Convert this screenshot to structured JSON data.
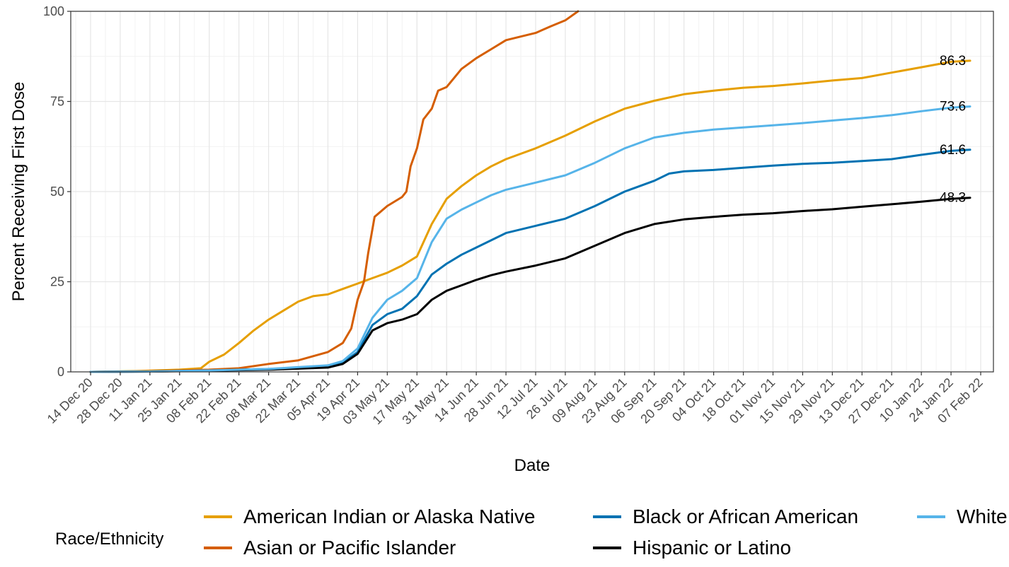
{
  "chart_data": {
    "type": "line",
    "title": "",
    "xlabel": "Date",
    "ylabel": "Percent Receiving First Dose",
    "ylim": [
      0,
      100
    ],
    "y_ticks": [
      0,
      25,
      50,
      75,
      100
    ],
    "xlim": [
      "2020-12-14",
      "2022-02-07"
    ],
    "x_tick_labels": [
      "14 Dec 20",
      "28 Dec 20",
      "11 Jan 21",
      "25 Jan 21",
      "08 Feb 21",
      "22 Feb 21",
      "08 Mar 21",
      "22 Mar 21",
      "05 Apr 21",
      "19 Apr 21",
      "03 May 21",
      "17 May 21",
      "31 May 21",
      "14 Jun 21",
      "28 Jun 21",
      "12 Jul 21",
      "26 Jul 21",
      "09 Aug 21",
      "23 Aug 21",
      "06 Sep 21",
      "20 Sep 21",
      "04 Oct 21",
      "18 Oct 21",
      "01 Nov 21",
      "15 Nov 21",
      "29 Nov 21",
      "13 Dec 21",
      "27 Dec 21",
      "10 Jan 22",
      "24 Jan 22",
      "07 Feb 22"
    ],
    "x_tick_dates": [
      "2020-12-14",
      "2020-12-28",
      "2021-01-11",
      "2021-01-25",
      "2021-02-08",
      "2021-02-22",
      "2021-03-08",
      "2021-03-22",
      "2021-04-05",
      "2021-04-19",
      "2021-05-03",
      "2021-05-17",
      "2021-05-31",
      "2021-06-14",
      "2021-06-28",
      "2021-07-12",
      "2021-07-26",
      "2021-08-09",
      "2021-08-23",
      "2021-09-06",
      "2021-09-20",
      "2021-10-04",
      "2021-10-18",
      "2021-11-01",
      "2021-11-15",
      "2021-11-29",
      "2021-12-13",
      "2021-12-27",
      "2022-01-10",
      "2022-01-24",
      "2022-02-07"
    ],
    "grid": true,
    "legend": {
      "title": "Race/Ethnicity",
      "position": "bottom",
      "entries": [
        {
          "name": "American Indian or Alaska Native",
          "color": "#E69F00"
        },
        {
          "name": "Asian or Pacific Islander",
          "color": "#D55E00"
        },
        {
          "name": "Black or African American",
          "color": "#0072B2"
        },
        {
          "name": "Hispanic or Latino",
          "color": "#000000"
        },
        {
          "name": "White",
          "color": "#56B4E9"
        }
      ]
    },
    "series": [
      {
        "name": "American Indian or Alaska Native",
        "color": "#E69F00",
        "end_label": "86.3",
        "points": [
          [
            "2020-12-14",
            0
          ],
          [
            "2021-01-04",
            0.2
          ],
          [
            "2021-01-25",
            0.6
          ],
          [
            "2021-02-04",
            1.0
          ],
          [
            "2021-02-08",
            2.8
          ],
          [
            "2021-02-15",
            4.8
          ],
          [
            "2021-02-22",
            8
          ],
          [
            "2021-03-01",
            11.5
          ],
          [
            "2021-03-08",
            14.5
          ],
          [
            "2021-03-15",
            17
          ],
          [
            "2021-03-22",
            19.5
          ],
          [
            "2021-03-29",
            21
          ],
          [
            "2021-04-05",
            21.5
          ],
          [
            "2021-04-12",
            23
          ],
          [
            "2021-04-19",
            24.5
          ],
          [
            "2021-04-26",
            26
          ],
          [
            "2021-05-03",
            27.5
          ],
          [
            "2021-05-10",
            29.5
          ],
          [
            "2021-05-17",
            32
          ],
          [
            "2021-05-24",
            41
          ],
          [
            "2021-05-31",
            48
          ],
          [
            "2021-06-07",
            51.5
          ],
          [
            "2021-06-14",
            54.5
          ],
          [
            "2021-06-21",
            57
          ],
          [
            "2021-06-28",
            59
          ],
          [
            "2021-07-12",
            62
          ],
          [
            "2021-07-26",
            65.5
          ],
          [
            "2021-08-09",
            69.5
          ],
          [
            "2021-08-23",
            73
          ],
          [
            "2021-09-06",
            75.2
          ],
          [
            "2021-09-20",
            77
          ],
          [
            "2021-10-04",
            78
          ],
          [
            "2021-10-18",
            78.8
          ],
          [
            "2021-11-01",
            79.3
          ],
          [
            "2021-11-15",
            80
          ],
          [
            "2021-11-29",
            80.8
          ],
          [
            "2021-12-13",
            81.5
          ],
          [
            "2021-12-27",
            83
          ],
          [
            "2022-01-10",
            84.5
          ],
          [
            "2022-01-24",
            86
          ],
          [
            "2022-02-02",
            86.3
          ]
        ]
      },
      {
        "name": "Asian or Pacific Islander",
        "color": "#D55E00",
        "points": [
          [
            "2020-12-14",
            0
          ],
          [
            "2021-01-11",
            0.2
          ],
          [
            "2021-02-08",
            0.6
          ],
          [
            "2021-02-22",
            1.0
          ],
          [
            "2021-03-08",
            2.2
          ],
          [
            "2021-03-22",
            3.2
          ],
          [
            "2021-04-05",
            5.5
          ],
          [
            "2021-04-12",
            8
          ],
          [
            "2021-04-16",
            12
          ],
          [
            "2021-04-19",
            20
          ],
          [
            "2021-04-22",
            25
          ],
          [
            "2021-04-24",
            33
          ],
          [
            "2021-04-27",
            43
          ],
          [
            "2021-05-03",
            46
          ],
          [
            "2021-05-10",
            48.5
          ],
          [
            "2021-05-12",
            50
          ],
          [
            "2021-05-14",
            57
          ],
          [
            "2021-05-17",
            62
          ],
          [
            "2021-05-20",
            70
          ],
          [
            "2021-05-24",
            73
          ],
          [
            "2021-05-27",
            78
          ],
          [
            "2021-05-31",
            79
          ],
          [
            "2021-06-07",
            84
          ],
          [
            "2021-06-14",
            87
          ],
          [
            "2021-06-21",
            89.5
          ],
          [
            "2021-06-28",
            92
          ],
          [
            "2021-07-05",
            93
          ],
          [
            "2021-07-12",
            94
          ],
          [
            "2021-07-19",
            95.8
          ],
          [
            "2021-07-26",
            97.5
          ],
          [
            "2021-08-01",
            100
          ]
        ]
      },
      {
        "name": "Black or African American",
        "color": "#0072B2",
        "end_label": "61.6",
        "points": [
          [
            "2020-12-14",
            0
          ],
          [
            "2021-01-11",
            0.1
          ],
          [
            "2021-02-08",
            0.4
          ],
          [
            "2021-03-08",
            0.8
          ],
          [
            "2021-04-05",
            1.5
          ],
          [
            "2021-04-12",
            2.5
          ],
          [
            "2021-04-19",
            5.5
          ],
          [
            "2021-04-26",
            13
          ],
          [
            "2021-05-03",
            16
          ],
          [
            "2021-05-10",
            17.5
          ],
          [
            "2021-05-17",
            21
          ],
          [
            "2021-05-24",
            27
          ],
          [
            "2021-05-31",
            30
          ],
          [
            "2021-06-07",
            32.5
          ],
          [
            "2021-06-14",
            34.5
          ],
          [
            "2021-06-21",
            36.5
          ],
          [
            "2021-06-28",
            38.5
          ],
          [
            "2021-07-12",
            40.5
          ],
          [
            "2021-07-26",
            42.5
          ],
          [
            "2021-08-09",
            46
          ],
          [
            "2021-08-23",
            50
          ],
          [
            "2021-09-06",
            53
          ],
          [
            "2021-09-13",
            55
          ],
          [
            "2021-09-20",
            55.6
          ],
          [
            "2021-10-04",
            56
          ],
          [
            "2021-10-18",
            56.6
          ],
          [
            "2021-11-01",
            57.2
          ],
          [
            "2021-11-15",
            57.7
          ],
          [
            "2021-11-29",
            58
          ],
          [
            "2021-12-13",
            58.5
          ],
          [
            "2021-12-27",
            59
          ],
          [
            "2022-01-10",
            60.2
          ],
          [
            "2022-01-24",
            61.3
          ],
          [
            "2022-02-02",
            61.6
          ]
        ]
      },
      {
        "name": "Hispanic or Latino",
        "color": "#000000",
        "end_label": "48.3",
        "points": [
          [
            "2020-12-14",
            0
          ],
          [
            "2021-01-11",
            0.1
          ],
          [
            "2021-02-08",
            0.3
          ],
          [
            "2021-03-08",
            0.6
          ],
          [
            "2021-04-05",
            1.2
          ],
          [
            "2021-04-12",
            2.2
          ],
          [
            "2021-04-19",
            5
          ],
          [
            "2021-04-26",
            11.5
          ],
          [
            "2021-05-03",
            13.5
          ],
          [
            "2021-05-10",
            14.5
          ],
          [
            "2021-05-17",
            16
          ],
          [
            "2021-05-24",
            20
          ],
          [
            "2021-05-31",
            22.5
          ],
          [
            "2021-06-07",
            24
          ],
          [
            "2021-06-14",
            25.5
          ],
          [
            "2021-06-21",
            26.8
          ],
          [
            "2021-06-28",
            27.8
          ],
          [
            "2021-07-12",
            29.5
          ],
          [
            "2021-07-26",
            31.5
          ],
          [
            "2021-08-09",
            35
          ],
          [
            "2021-08-23",
            38.5
          ],
          [
            "2021-09-06",
            41
          ],
          [
            "2021-09-20",
            42.3
          ],
          [
            "2021-10-04",
            43
          ],
          [
            "2021-10-18",
            43.6
          ],
          [
            "2021-11-01",
            44
          ],
          [
            "2021-11-15",
            44.6
          ],
          [
            "2021-11-29",
            45.1
          ],
          [
            "2021-12-13",
            45.8
          ],
          [
            "2021-12-27",
            46.5
          ],
          [
            "2022-01-10",
            47.2
          ],
          [
            "2022-01-24",
            48
          ],
          [
            "2022-02-02",
            48.3
          ]
        ]
      },
      {
        "name": "White",
        "color": "#56B4E9",
        "end_label": "73.6",
        "points": [
          [
            "2020-12-14",
            0
          ],
          [
            "2021-01-11",
            0.1
          ],
          [
            "2021-02-08",
            0.4
          ],
          [
            "2021-03-08",
            0.8
          ],
          [
            "2021-04-05",
            1.8
          ],
          [
            "2021-04-12",
            3
          ],
          [
            "2021-04-19",
            6.5
          ],
          [
            "2021-04-26",
            15
          ],
          [
            "2021-05-03",
            20
          ],
          [
            "2021-05-10",
            22.5
          ],
          [
            "2021-05-17",
            26
          ],
          [
            "2021-05-24",
            36
          ],
          [
            "2021-05-31",
            42.5
          ],
          [
            "2021-06-07",
            45
          ],
          [
            "2021-06-14",
            47
          ],
          [
            "2021-06-21",
            49
          ],
          [
            "2021-06-28",
            50.5
          ],
          [
            "2021-07-12",
            52.5
          ],
          [
            "2021-07-26",
            54.5
          ],
          [
            "2021-08-09",
            58
          ],
          [
            "2021-08-23",
            62
          ],
          [
            "2021-09-06",
            65
          ],
          [
            "2021-09-20",
            66.3
          ],
          [
            "2021-10-04",
            67.2
          ],
          [
            "2021-10-18",
            67.8
          ],
          [
            "2021-11-01",
            68.4
          ],
          [
            "2021-11-15",
            69
          ],
          [
            "2021-11-29",
            69.7
          ],
          [
            "2021-12-13",
            70.4
          ],
          [
            "2021-12-27",
            71.2
          ],
          [
            "2022-01-10",
            72.3
          ],
          [
            "2022-01-24",
            73.3
          ],
          [
            "2022-02-02",
            73.6
          ]
        ]
      }
    ]
  }
}
